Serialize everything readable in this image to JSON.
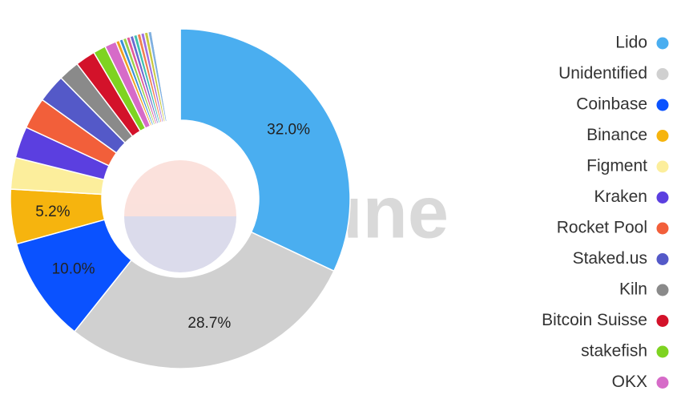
{
  "chart_data": {
    "type": "pie",
    "donut": true,
    "watermark": "Dune",
    "categories": [
      "Lido",
      "Unidentified",
      "Coinbase",
      "Binance",
      "Figment",
      "Kraken",
      "Rocket Pool",
      "Staked.us",
      "Kiln",
      "Bitcoin Suisse",
      "stakefish",
      "OKX",
      null,
      null,
      null,
      null,
      null,
      null,
      null,
      null,
      null,
      null,
      null
    ],
    "values": [
      32.0,
      28.7,
      10.0,
      5.2,
      3.0,
      3.0,
      3.0,
      2.7,
      2.0,
      1.9,
      1.2,
      1.1,
      0.35,
      0.35,
      0.35,
      0.35,
      0.35,
      0.35,
      0.35,
      0.35,
      0.35,
      0.35,
      2.7
    ],
    "value_labels": [
      "32.0%",
      "28.7%",
      "10.0%",
      "5.2%",
      null,
      null,
      null,
      null,
      null,
      null,
      null,
      null,
      null,
      null,
      null,
      null,
      null,
      null,
      null,
      null,
      null,
      null,
      null
    ],
    "colors": [
      "#4aaef0",
      "#d0d0d0",
      "#0a52ff",
      "#f6b40e",
      "#fcee9c",
      "#5b3fe0",
      "#f25f3a",
      "#5459c8",
      "#8a8a8a",
      "#d3122a",
      "#7ed321",
      "#d66bc8",
      "#f0a020",
      "#3a8fd8",
      "#9bd04a",
      "#e05a9a",
      "#6a6ad0",
      "#40c0b0",
      "#f08050",
      "#a070e0",
      "#c8c840",
      "#80b0e0",
      "#ffffff"
    ]
  }
}
